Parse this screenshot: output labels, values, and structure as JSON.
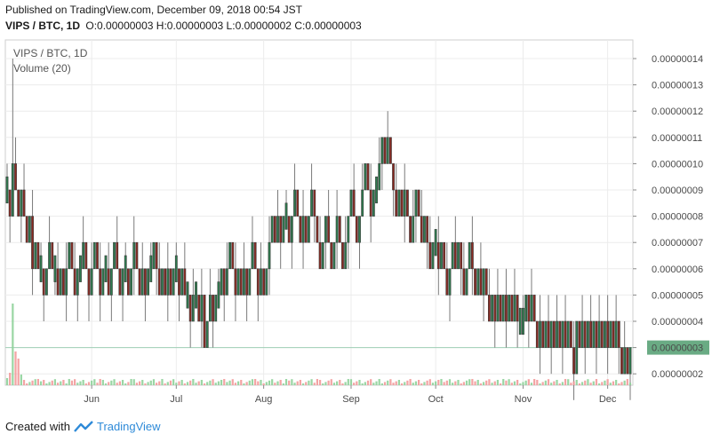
{
  "header": {
    "published": "Published on TradingView.com, December 09, 2018 00:54 JST",
    "symbol_line": "VIPS / BTC, 1D",
    "o_label": "O:",
    "o_value": "0.00000003",
    "h_label": "H:",
    "h_value": "0.00000003",
    "l_label": "L:",
    "l_value": "0.00000002",
    "c_label": "C:",
    "c_value": "0.00000003"
  },
  "footer": {
    "created_with": "Created with",
    "brand": "TradingView"
  },
  "colors": {
    "up": "#2e7d4f",
    "down": "#8b2a22",
    "wick": "#7a7a7a",
    "vol_up": "#8fd19a",
    "vol_down": "#f29a9a",
    "price_line": "#9fcfb6",
    "price_tag": "#6aab84",
    "grid": "#ececec"
  },
  "chart_data": {
    "type": "candlestick",
    "series_label": "VIPS / BTC, 1D",
    "volume_label": "Volume (20)",
    "ylim": [
      1.6e-08,
      1.46e-08
    ],
    "yticks": [
      "0.00000014",
      "0.00000013",
      "0.00000012",
      "0.00000011",
      "0.00000010",
      "0.00000009",
      "0.00000008",
      "0.00000007",
      "0.00000006",
      "0.00000005",
      "0.00000004",
      "0.00000003",
      "0.00000002"
    ],
    "ytick_values": [
      1.4e-07,
      1.3e-07,
      1.2e-07,
      1.1e-07,
      1e-07,
      9e-08,
      8e-08,
      7e-08,
      6e-08,
      5e-08,
      4e-08,
      3e-08,
      2e-08
    ],
    "last_price_label": "0.00000003",
    "last_price": 3e-08,
    "xticks": [
      "Jun",
      "Jul",
      "Aug",
      "Sep",
      "Oct",
      "Nov",
      "Dec"
    ],
    "xtick_dates": [
      "2018-06-01",
      "2018-07-01",
      "2018-08-01",
      "2018-09-01",
      "2018-10-01",
      "2018-11-01",
      "2018-12-01"
    ],
    "date_range": [
      "2018-05-02",
      "2018-12-09"
    ],
    "segments": [
      {
        "start": "2018-05-02",
        "end": "2018-05-07",
        "levels": [
          9,
          8,
          10,
          9,
          8,
          9
        ],
        "spike_high": 14
      },
      {
        "start": "2018-05-08",
        "end": "2018-05-18",
        "levels": [
          8,
          7,
          8,
          6,
          7,
          6,
          6,
          5,
          6,
          7,
          6
        ]
      },
      {
        "start": "2018-05-19",
        "end": "2018-06-30",
        "levels": [
          6,
          5,
          6,
          5,
          6,
          7,
          6,
          5,
          6,
          6,
          7,
          6,
          5,
          6,
          7,
          6,
          5,
          6,
          6,
          5,
          6,
          7,
          6,
          5,
          6,
          6,
          5,
          6,
          7,
          6,
          5,
          6,
          5,
          6,
          6,
          7,
          6,
          5,
          6,
          5,
          6,
          5,
          6
        ]
      },
      {
        "start": "2018-07-01",
        "end": "2018-07-15",
        "levels": [
          6,
          5,
          6,
          5,
          5,
          4,
          5,
          5,
          4,
          5,
          3,
          4,
          5,
          4,
          5
        ]
      },
      {
        "start": "2018-07-16",
        "end": "2018-08-10",
        "levels": [
          5,
          6,
          5,
          6,
          7,
          6,
          5,
          6,
          5,
          6,
          5,
          6,
          7,
          6,
          5,
          6,
          5,
          6,
          7,
          8,
          7,
          8,
          7,
          8,
          8,
          7
        ]
      },
      {
        "start": "2018-08-11",
        "end": "2018-09-09",
        "levels": [
          8,
          9,
          8,
          7,
          8,
          7,
          8,
          9,
          8,
          7,
          6,
          7,
          8,
          7,
          6,
          7,
          8,
          7,
          6,
          7,
          8,
          9,
          8,
          7,
          8,
          9,
          10,
          9,
          8,
          9
        ]
      },
      {
        "start": "2018-09-10",
        "end": "2018-09-30",
        "levels": [
          9,
          10,
          11,
          10,
          11,
          10,
          9,
          8,
          9,
          8,
          9,
          8,
          7,
          8,
          9,
          8,
          7,
          8,
          7,
          6,
          7
        ]
      },
      {
        "start": "2018-10-01",
        "end": "2018-10-31",
        "levels": [
          7,
          6,
          7,
          6,
          5,
          6,
          7,
          6,
          7,
          6,
          5,
          6,
          7,
          6,
          5,
          6,
          5,
          6,
          5,
          4,
          5,
          4,
          5,
          4,
          5,
          4,
          5,
          4,
          5,
          4,
          4
        ]
      },
      {
        "start": "2018-11-01",
        "end": "2018-12-03",
        "levels": [
          4,
          5,
          4,
          5,
          4,
          3,
          4,
          3,
          4,
          3,
          4,
          3,
          4,
          3,
          4,
          3,
          4,
          3,
          2,
          4,
          3,
          4,
          3,
          4,
          3,
          4,
          3,
          4,
          3,
          4,
          3,
          4,
          3
        ]
      },
      {
        "start": "2018-12-04",
        "end": "2018-12-09",
        "levels": [
          4,
          3,
          2,
          3,
          2,
          3
        ]
      }
    ],
    "level_unit": 1e-08,
    "volume_max_relative": 1.0,
    "volume_spike_date": "2018-05-04",
    "volume_unit": "relative"
  }
}
